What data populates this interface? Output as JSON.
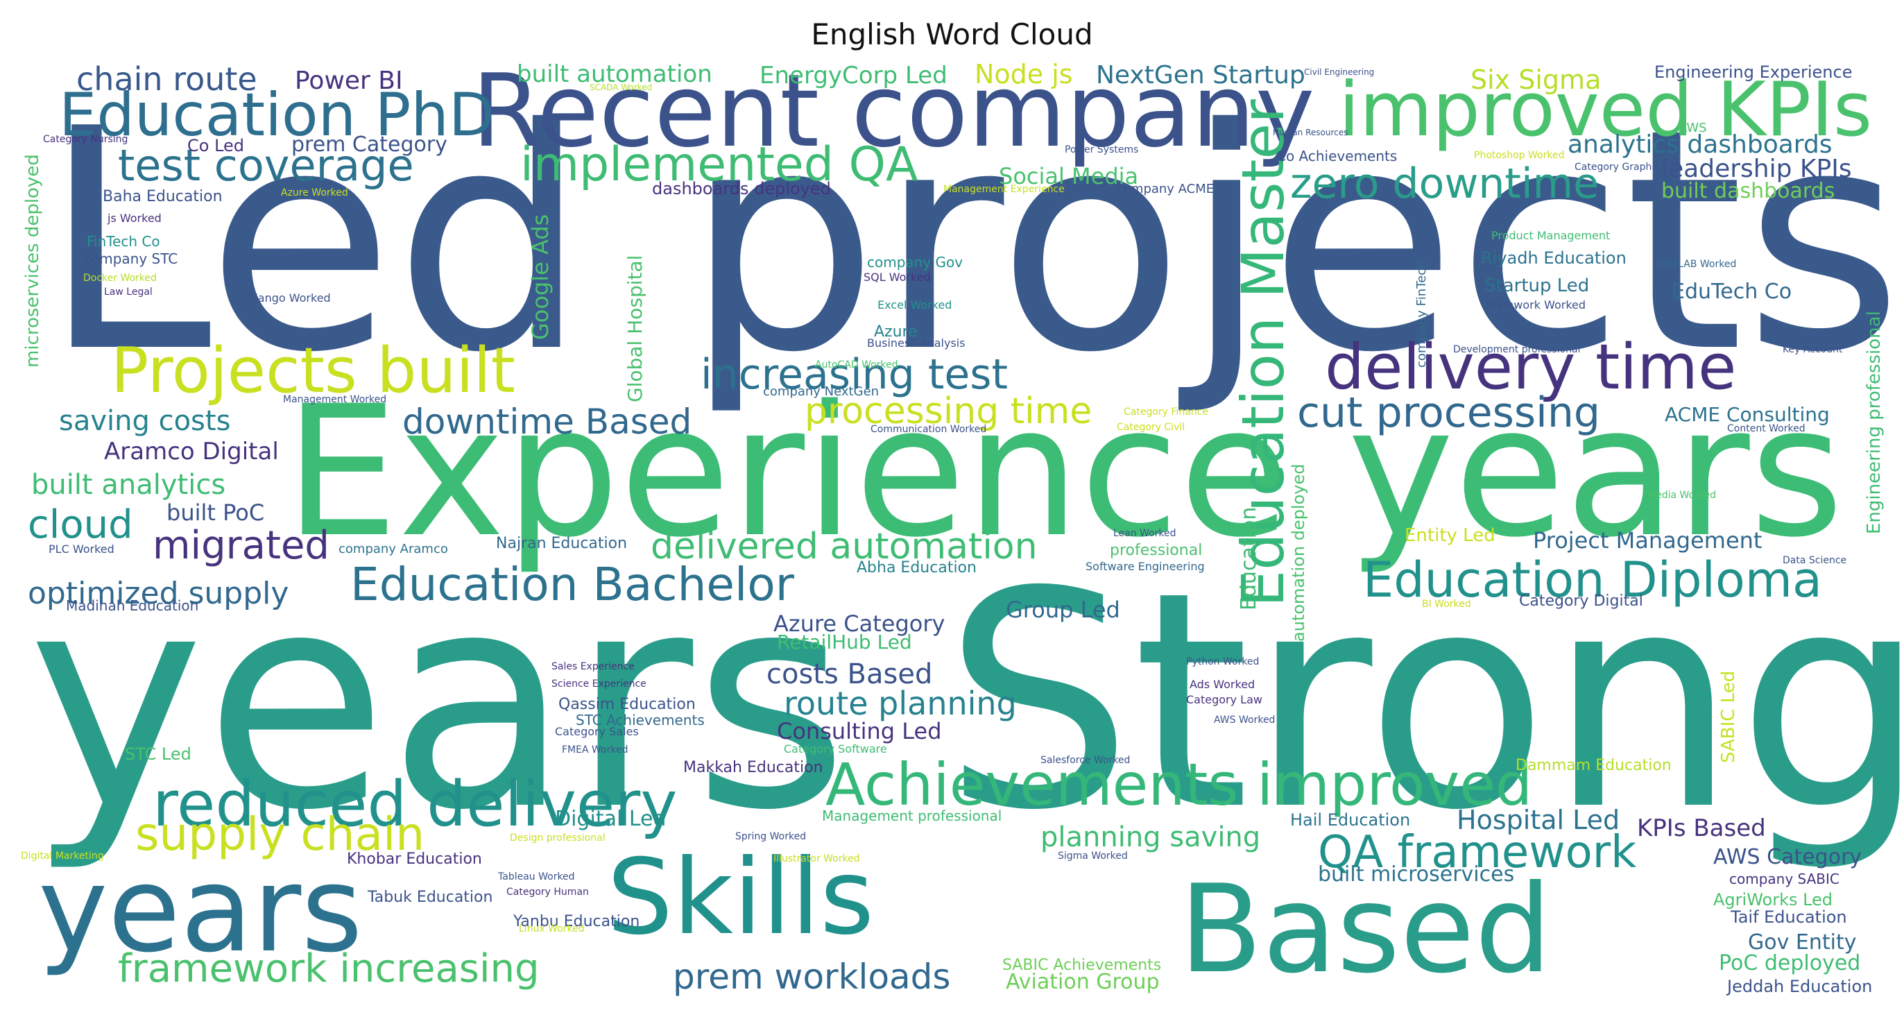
{
  "title": "English Word Cloud",
  "words": [
    {
      "text": "Led projects",
      "color": "#3b5a8c"
    },
    {
      "text": "Experience years",
      "color": "#3cbc75"
    },
    {
      "text": "years Strong",
      "color": "#2a9d8a"
    },
    {
      "text": "Recent company",
      "color": "#3b528b"
    },
    {
      "text": "improved KPIs",
      "color": "#4ac16d"
    },
    {
      "text": "Education PhD",
      "color": "#2e6e8e"
    },
    {
      "text": "test coverage",
      "color": "#2c728e"
    },
    {
      "text": "implemented QA",
      "color": "#3fbc73"
    },
    {
      "text": "zero downtime",
      "color": "#2a9d8a"
    },
    {
      "text": "chain route",
      "color": "#38598c"
    },
    {
      "text": "Power BI",
      "color": "#46337e"
    },
    {
      "text": "built automation",
      "color": "#3fbc73"
    },
    {
      "text": "EnergyCorp Led",
      "color": "#3fbc73"
    },
    {
      "text": "Node js",
      "color": "#c8e020"
    },
    {
      "text": "NextGen Startup",
      "color": "#2c728e"
    },
    {
      "text": "Six Sigma",
      "color": "#b5de2b"
    },
    {
      "text": "Engineering Experience",
      "color": "#3b528b"
    },
    {
      "text": "analytics dashboards",
      "color": "#2c728e"
    },
    {
      "text": "leadership KPIs",
      "color": "#3b528b"
    },
    {
      "text": "built dashboards",
      "color": "#6ece58"
    },
    {
      "text": "Projects built",
      "color": "#c8e020"
    },
    {
      "text": "delivery time",
      "color": "#46337e"
    },
    {
      "text": "Education Master",
      "color": "#35b779"
    },
    {
      "text": "increasing test",
      "color": "#2c728e"
    },
    {
      "text": "processing time",
      "color": "#c8e020"
    },
    {
      "text": "cut processing",
      "color": "#31688e"
    },
    {
      "text": "saving costs",
      "color": "#26828e"
    },
    {
      "text": "downtime Based",
      "color": "#31688e"
    },
    {
      "text": "Aramco Digital",
      "color": "#46337e"
    },
    {
      "text": "built analytics",
      "color": "#3fbc73"
    },
    {
      "text": "built PoC",
      "color": "#3b528b"
    },
    {
      "text": "cloud",
      "color": "#21918c"
    },
    {
      "text": "migrated",
      "color": "#46337e"
    },
    {
      "text": "delivered automation",
      "color": "#3fbc73"
    },
    {
      "text": "Education Bachelor",
      "color": "#2c728e"
    },
    {
      "text": "Education Diploma",
      "color": "#21918c"
    },
    {
      "text": "optimized supply",
      "color": "#31688e"
    },
    {
      "text": "Education",
      "color": "#3fbc73"
    },
    {
      "text": "Project Management",
      "color": "#31688e"
    },
    {
      "text": "Entity Led",
      "color": "#c8e020"
    },
    {
      "text": "Azure Category",
      "color": "#3b528b"
    },
    {
      "text": "RetailHub Led",
      "color": "#3fbc73"
    },
    {
      "text": "Group Led",
      "color": "#31688e"
    },
    {
      "text": "costs Based",
      "color": "#3b528b"
    },
    {
      "text": "route planning",
      "color": "#26828e"
    },
    {
      "text": "Consulting Led",
      "color": "#46337e"
    },
    {
      "text": "reduced delivery",
      "color": "#21918c"
    },
    {
      "text": "Achievements improved",
      "color": "#35b779"
    },
    {
      "text": "supply chain",
      "color": "#c8e020"
    },
    {
      "text": "QA framework",
      "color": "#21918c"
    },
    {
      "text": "KPIs Based",
      "color": "#46337e"
    },
    {
      "text": "Hospital Led",
      "color": "#2c728e"
    },
    {
      "text": "planning saving",
      "color": "#3fbc73"
    },
    {
      "text": "years",
      "color": "#2c728e"
    },
    {
      "text": "Skills",
      "color": "#21918c"
    },
    {
      "text": "Based",
      "color": "#2a9d8a"
    },
    {
      "text": "framework increasing",
      "color": "#4ac16d"
    },
    {
      "text": "prem workloads",
      "color": "#31688e"
    },
    {
      "text": "built microservices",
      "color": "#2c728e"
    },
    {
      "text": "AWS Category",
      "color": "#3b528b"
    },
    {
      "text": "AgriWorks Led",
      "color": "#4ac16d"
    },
    {
      "text": "Gov Entity",
      "color": "#31688e"
    },
    {
      "text": "PoC deployed",
      "color": "#3fbc73"
    },
    {
      "text": "Jeddah Education",
      "color": "#3b528b"
    },
    {
      "text": "Taif Education",
      "color": "#3b528b"
    },
    {
      "text": "Aviation Group",
      "color": "#6ece58"
    },
    {
      "text": "SABIC Achievements",
      "color": "#6ece58"
    },
    {
      "text": "Co Led",
      "color": "#46337e"
    },
    {
      "text": "prem Category",
      "color": "#3b528b"
    },
    {
      "text": "Baha Education",
      "color": "#3b528b"
    },
    {
      "text": "js Worked",
      "color": "#46337e"
    },
    {
      "text": "FinTech Co",
      "color": "#21918c"
    },
    {
      "text": "company STC",
      "color": "#3b528b"
    },
    {
      "text": "Docker Worked",
      "color": "#b5de2b"
    },
    {
      "text": "Law Legal",
      "color": "#46337e"
    },
    {
      "text": "Django Worked",
      "color": "#3b528b"
    },
    {
      "text": "Social Media",
      "color": "#4ac16d"
    },
    {
      "text": "dashboards deployed",
      "color": "#46337e"
    },
    {
      "text": "Google Ads",
      "color": "#4ac16d"
    },
    {
      "text": "Global Hospital",
      "color": "#4ac16d"
    },
    {
      "text": "company Gov",
      "color": "#21918c"
    },
    {
      "text": "SQL Worked",
      "color": "#46337e"
    },
    {
      "text": "Excel Worked",
      "color": "#21918c"
    },
    {
      "text": "Azure",
      "color": "#26828e"
    },
    {
      "text": "Riyadh Education",
      "color": "#2c728e"
    },
    {
      "text": "Startup Led",
      "color": "#2c728e"
    },
    {
      "text": "EduTech Co",
      "color": "#31688e"
    },
    {
      "text": "Teamwork Worked",
      "color": "#3b528b"
    },
    {
      "text": "ACME Consulting",
      "color": "#2c728e"
    },
    {
      "text": "Najran Education",
      "color": "#31688e"
    },
    {
      "text": "Abha Education",
      "color": "#26828e"
    },
    {
      "text": "Makkah Education",
      "color": "#46337e"
    },
    {
      "text": "Qassim Education",
      "color": "#3b528b"
    },
    {
      "text": "STC Achievements",
      "color": "#31688e"
    },
    {
      "text": "Digital Led",
      "color": "#21918c"
    },
    {
      "text": "Khobar Education",
      "color": "#46337e"
    },
    {
      "text": "Tabuk Education",
      "color": "#3b528b"
    },
    {
      "text": "Yanbu Education",
      "color": "#3b528b"
    },
    {
      "text": "Hail Education",
      "color": "#2c728e"
    },
    {
      "text": "Dammam Education",
      "color": "#b5de2b"
    },
    {
      "text": "Madinah Education",
      "color": "#3b528b"
    },
    {
      "text": "STC Led",
      "color": "#4ac16d"
    },
    {
      "text": "company Aramco",
      "color": "#2c728e"
    },
    {
      "text": "PLC Worked",
      "color": "#3b528b"
    },
    {
      "text": "microservices deployed",
      "color": "#4ac16d"
    },
    {
      "text": "automation deployed",
      "color": "#4ac16d"
    },
    {
      "text": "SABIC Led",
      "color": "#c8e020"
    },
    {
      "text": "Engineering professional",
      "color": "#3fbc73"
    },
    {
      "text": "company FinTech",
      "color": "#31688e"
    },
    {
      "text": "Co Achievements",
      "color": "#3b528b"
    },
    {
      "text": "company ACME",
      "color": "#3b528b"
    },
    {
      "text": "Human Resources",
      "color": "#3b528b"
    },
    {
      "text": "Civil Engineering",
      "color": "#3b528b"
    },
    {
      "text": "SCADA Worked",
      "color": "#b5de2b"
    },
    {
      "text": "Power Systems",
      "color": "#3b528b"
    },
    {
      "text": "Photoshop Worked",
      "color": "#c8e020"
    },
    {
      "text": "Category Graphic",
      "color": "#3b528b"
    },
    {
      "text": "AWS",
      "color": "#4ac16d"
    },
    {
      "text": "Product Management",
      "color": "#3fbc73"
    },
    {
      "text": "MATLAB Worked",
      "color": "#31688e"
    },
    {
      "text": "Development professional",
      "color": "#3b528b"
    },
    {
      "text": "Key Account",
      "color": "#3b528b"
    },
    {
      "text": "Content Worked",
      "color": "#3b528b"
    },
    {
      "text": "Media Worked",
      "color": "#4ac16d"
    },
    {
      "text": "Data Science",
      "color": "#3b528b"
    },
    {
      "text": "Category Digital",
      "color": "#3b528b"
    },
    {
      "text": "BI Worked",
      "color": "#c8e020"
    },
    {
      "text": "Python Worked",
      "color": "#3b528b"
    },
    {
      "text": "Ads Worked",
      "color": "#46337e"
    },
    {
      "text": "Category Law",
      "color": "#46337e"
    },
    {
      "text": "AWS Worked",
      "color": "#3b528b"
    },
    {
      "text": "Salesforce Worked",
      "color": "#3b528b"
    },
    {
      "text": "Lean Worked",
      "color": "#3b528b"
    },
    {
      "text": "professional",
      "color": "#4ac16d"
    },
    {
      "text": "Software Engineering",
      "color": "#31688e"
    },
    {
      "text": "Management Experience",
      "color": "#c8e020"
    },
    {
      "text": "Management Worked",
      "color": "#3b528b"
    },
    {
      "text": "Business Analysis",
      "color": "#3b528b"
    },
    {
      "text": "AutoCAD Worked",
      "color": "#4ac16d"
    },
    {
      "text": "company NextGen",
      "color": "#31688e"
    },
    {
      "text": "Communication Worked",
      "color": "#3b528b"
    },
    {
      "text": "Category Finance",
      "color": "#c8e020"
    },
    {
      "text": "Category Civil",
      "color": "#c8e020"
    },
    {
      "text": "Sales Experience",
      "color": "#46337e"
    },
    {
      "text": "Science Experience",
      "color": "#46337e"
    },
    {
      "text": "Category Sales",
      "color": "#3b528b"
    },
    {
      "text": "FMEA Worked",
      "color": "#3b528b"
    },
    {
      "text": "Category Software",
      "color": "#3fbc73"
    },
    {
      "text": "Management professional",
      "color": "#3fbc73"
    },
    {
      "text": "Spring Worked",
      "color": "#3b528b"
    },
    {
      "text": "Design professional",
      "color": "#c8e020"
    },
    {
      "text": "Illustrator Worked",
      "color": "#c8e020"
    },
    {
      "text": "Tableau Worked",
      "color": "#3b528b"
    },
    {
      "text": "Category Human",
      "color": "#46337e"
    },
    {
      "text": "Linux Worked",
      "color": "#c8e020"
    },
    {
      "text": "Sigma Worked",
      "color": "#3b528b"
    },
    {
      "text": "Digital Marketing",
      "color": "#c8e020"
    },
    {
      "text": "Category Nursing",
      "color": "#46337e"
    },
    {
      "text": "Azure Worked",
      "color": "#c8e020"
    },
    {
      "text": "company SABIC",
      "color": "#46337e"
    }
  ]
}
